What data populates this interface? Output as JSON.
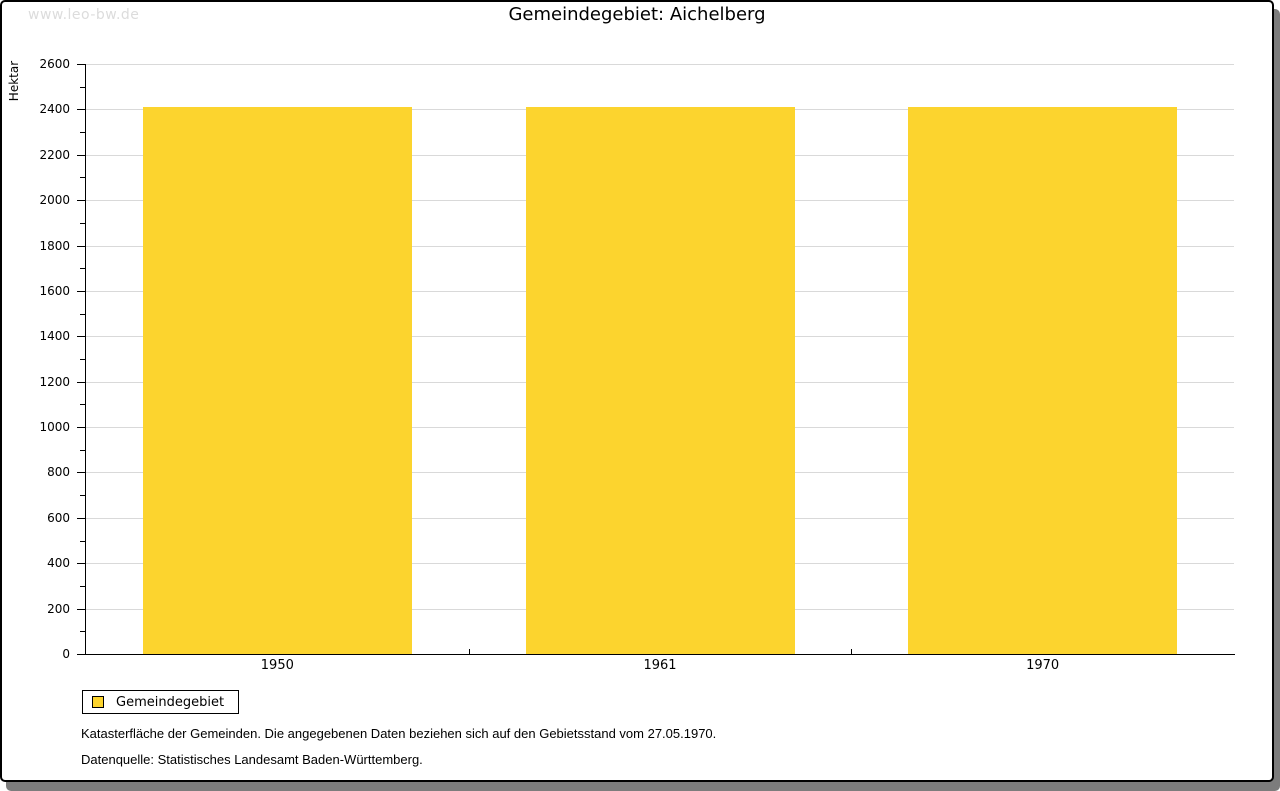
{
  "watermark": "www.leo-bw.de",
  "title": "Gemeindegebiet: Aichelberg",
  "chart_data": {
    "type": "bar",
    "title": "Gemeindegebiet: Aichelberg",
    "ylabel": "Hektar",
    "xlabel": "",
    "categories": [
      "1950",
      "1961",
      "1970"
    ],
    "series": [
      {
        "name": "Gemeindegebiet",
        "values": [
          2410,
          2410,
          2410
        ]
      }
    ],
    "ylim": [
      0,
      2600
    ],
    "ytick_step": 200,
    "yminor_step": 100,
    "grid": true,
    "legend_position": "bottom-left",
    "bar_color": "#fcd42e"
  },
  "legend": {
    "label": "Gemeindegebiet"
  },
  "footnotes": [
    "Katasterfläche der Gemeinden. Die angegebenen Daten beziehen sich auf den Gebietsstand vom 27.05.1970.",
    "Datenquelle: Statistisches Landesamt Baden-Württemberg."
  ],
  "colors": {
    "bar": "#fcd42e",
    "grid": "#d9d9d9",
    "axis": "#000000",
    "watermark": "#dcdcdc",
    "frame_border": "#000000",
    "frame_shadow": "#7c7c7c",
    "background": "#ffffff"
  }
}
